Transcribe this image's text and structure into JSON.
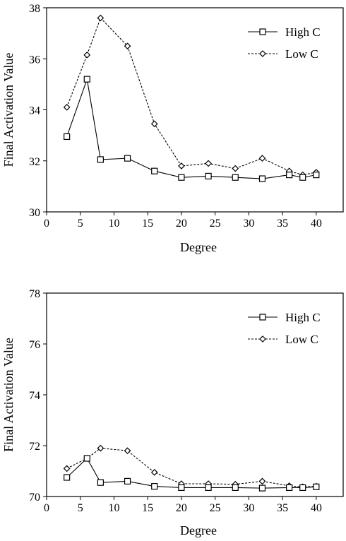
{
  "chart_data": [
    {
      "type": "line",
      "xlabel": "Degree",
      "ylabel": "Final Activation Value",
      "xlim": [
        0,
        44
      ],
      "ylim": [
        30,
        38
      ],
      "xticks": [
        0,
        5,
        10,
        15,
        20,
        25,
        30,
        35,
        40
      ],
      "yticks": [
        30,
        32,
        34,
        36,
        38
      ],
      "legend_position": "top-right",
      "x": [
        3,
        6,
        8,
        12,
        16,
        20,
        24,
        28,
        32,
        36,
        38,
        40
      ],
      "series": [
        {
          "name": "High C",
          "marker": "square",
          "line": "solid",
          "values": [
            32.95,
            35.2,
            32.05,
            32.1,
            31.6,
            31.35,
            31.4,
            31.35,
            31.3,
            31.45,
            31.35,
            31.45
          ]
        },
        {
          "name": "Low C",
          "marker": "diamond",
          "line": "dashed",
          "values": [
            34.1,
            36.15,
            37.6,
            36.5,
            33.45,
            31.8,
            31.9,
            31.7,
            32.1,
            31.6,
            31.45,
            31.55
          ]
        }
      ]
    },
    {
      "type": "line",
      "xlabel": "Degree",
      "ylabel": "Final Activation Value",
      "xlim": [
        0,
        44
      ],
      "ylim": [
        70,
        78
      ],
      "xticks": [
        0,
        5,
        10,
        15,
        20,
        25,
        30,
        35,
        40
      ],
      "yticks": [
        70,
        72,
        74,
        76,
        78
      ],
      "legend_position": "top-right",
      "x": [
        3,
        6,
        8,
        12,
        16,
        20,
        24,
        28,
        32,
        36,
        38,
        40
      ],
      "series": [
        {
          "name": "High C",
          "marker": "square",
          "line": "solid",
          "values": [
            70.75,
            71.5,
            70.55,
            70.6,
            70.4,
            70.35,
            70.35,
            70.35,
            70.33,
            70.35,
            70.35,
            70.38
          ]
        },
        {
          "name": "Low C",
          "marker": "diamond",
          "line": "dashed",
          "values": [
            71.1,
            71.5,
            71.9,
            71.8,
            70.95,
            70.5,
            70.5,
            70.48,
            70.6,
            70.42,
            70.38,
            70.4
          ]
        }
      ]
    }
  ]
}
